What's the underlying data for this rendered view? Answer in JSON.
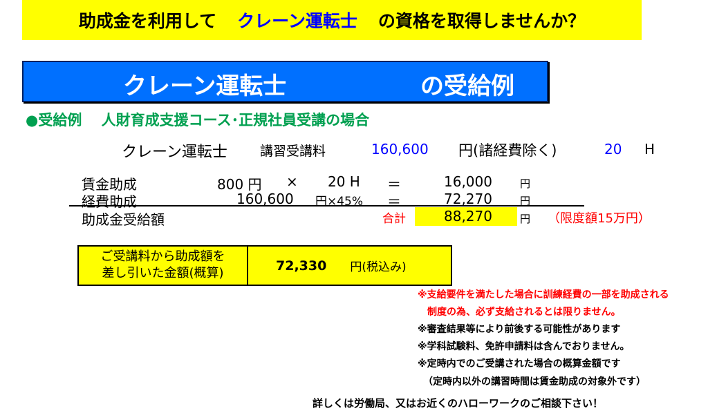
{
  "banner": {
    "pre": "助成金を利用して",
    "highlight": "クレーン運転士",
    "post": "の資格を取得しませんか？"
  },
  "title": {
    "course": "クレーン運転士",
    "suffix": "の受給例"
  },
  "heading": "●受給例　 人財育成支援コース･正規社員受講の場合",
  "fee": {
    "course": "クレーン運転士",
    "label": "講習受講料",
    "amount": "160,600",
    "unit": "円(諸経費除く)",
    "hours": "20",
    "hours_unit": "H"
  },
  "rows": [
    {
      "label": "賃金助成",
      "rate": "800 円",
      "op": "×",
      "hours": "20 H",
      "eq": "＝",
      "value": "16,000",
      "unit": "円"
    },
    {
      "label": "経費助成",
      "rate": "160,600",
      "op": "円×45%",
      "eq": "＝",
      "value": "72,270",
      "unit": "円"
    }
  ],
  "total": {
    "label": "助成金受給額",
    "sum_label": "合計",
    "value": "88,270",
    "unit": "円",
    "limit": "（限度額15万円）"
  },
  "net": {
    "label_line1": "ご受講料から助成額を",
    "label_line2": "差し引いた金額(概算)",
    "value": "72,330",
    "unit": "円(税込み)"
  },
  "notes": [
    {
      "text": "※支給要件を満たした場合に訓練経費の一部を助成される",
      "color": "#ff0000"
    },
    {
      "text": "　制度の為、必ず支給されるとは限りません。",
      "color": "#ff0000"
    },
    {
      "text": "※審査結果等により前後する可能性があります",
      "color": "#000000"
    },
    {
      "text": "※学科試験料、免許申請料は含んでおりません。",
      "color": "#000000"
    },
    {
      "text": "※定時内でのご受講された場合の概算金額です",
      "color": "#000000"
    },
    {
      "text": "（定時内以外の講習時間は賃金助成の対象外です）",
      "color": "#000000"
    }
  ],
  "footer": "詳しくは労働局、又はお近くのハローワークのご相談下さい！"
}
